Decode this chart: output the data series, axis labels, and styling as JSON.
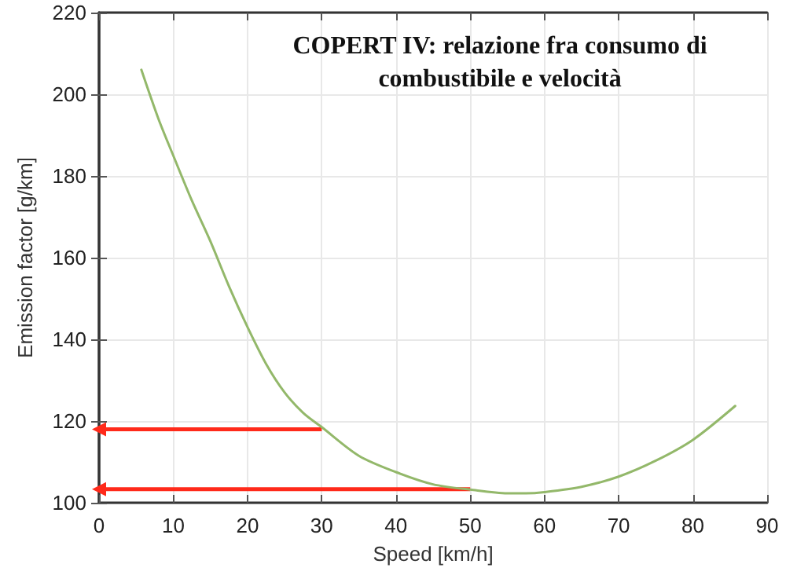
{
  "chart_data": {
    "type": "line",
    "title": "COPERT IV: relazione fra consumo di\ncombustibile e velocità",
    "xlabel": "Speed [km/h]",
    "ylabel": "Emission factor [g/km]",
    "xlim": [
      0,
      90
    ],
    "xticks": [
      0,
      10,
      20,
      30,
      40,
      50,
      60,
      70,
      80,
      90
    ],
    "ylim": [
      100,
      220
    ],
    "yticks": [
      100,
      120,
      140,
      160,
      180,
      200,
      220
    ],
    "grid": true,
    "marker": "none",
    "line_style": "solid",
    "series": [
      {
        "color": "#93b86a",
        "x": [
          5.7,
          8,
          10,
          12.5,
          15,
          17.5,
          20,
          22.5,
          25,
          27.5,
          30,
          35,
          40,
          45,
          50,
          55,
          57.5,
          60,
          65,
          70,
          75,
          80,
          85.7
        ],
        "values": [
          206,
          194,
          185,
          174,
          164,
          153,
          143,
          134,
          127,
          122,
          118.5,
          111.5,
          107.5,
          104.5,
          103.2,
          102.3,
          102.3,
          102.6,
          103.9,
          106.4,
          110.3,
          115.4,
          123.7
        ]
      },
      {
        "marker": "triangle",
        "color": "#ff2a1a",
        "x": [
          30,
          0
        ],
        "values": [
          118,
          118
        ]
      },
      {
        "marker": "triangle",
        "color": "#ff2a1a",
        "x": [
          50,
          0
        ],
        "values": [
          103.3,
          103.3
        ]
      }
    ]
  }
}
